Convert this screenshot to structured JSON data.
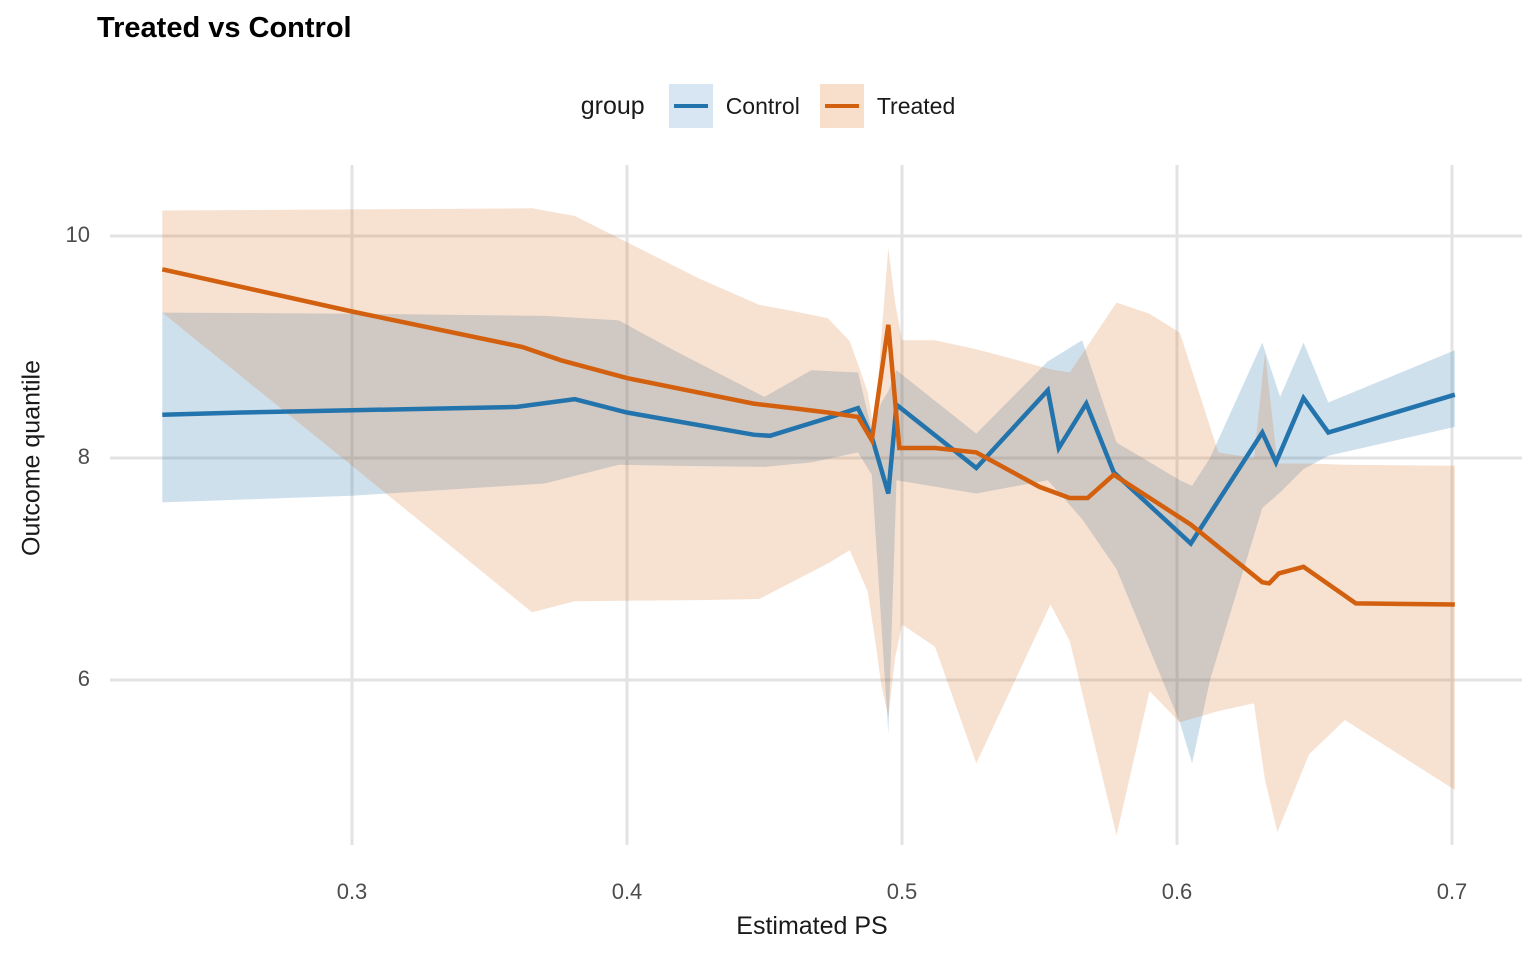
{
  "chart_data": {
    "type": "line",
    "title": "Treated vs Control",
    "xlabel": "Estimated PS",
    "ylabel": "Outcome quantile",
    "legend_title": "group",
    "x_ticks": [
      0.3,
      0.4,
      0.5,
      0.6,
      0.7
    ],
    "y_ticks": [
      10,
      8,
      6
    ],
    "xlim": [
      0.212,
      0.725
    ],
    "ylim": [
      4.5,
      10.6
    ],
    "grid": "major-only",
    "legend_position": "top-center",
    "gridline_color": "#e3e3e3",
    "series": [
      {
        "name": "Control",
        "line_color": "#2374ad",
        "band_fill": "rgba(35,116,173,0.22)",
        "legend_key_fill": "#d7e6f2",
        "x": [
          0.231,
          0.26,
          0.3,
          0.36,
          0.381,
          0.4,
          0.446,
          0.452,
          0.473,
          0.484,
          0.489,
          0.495,
          0.498,
          0.527,
          0.553,
          0.557,
          0.567,
          0.577,
          0.605,
          0.631,
          0.636,
          0.646,
          0.655,
          0.701
        ],
        "y": [
          8.39,
          8.41,
          8.43,
          8.46,
          8.53,
          8.41,
          8.21,
          8.2,
          8.36,
          8.45,
          8.19,
          7.68,
          8.48,
          7.91,
          8.61,
          8.09,
          8.49,
          7.87,
          7.23,
          8.23,
          7.96,
          8.54,
          8.23,
          8.57
        ],
        "band_x": [
          0.231,
          0.3,
          0.37,
          0.397,
          0.417,
          0.45,
          0.467,
          0.484,
          0.489,
          0.4925,
          0.495,
          0.498,
          0.527,
          0.553,
          0.5655,
          0.578,
          0.601,
          0.6055,
          0.612,
          0.631,
          0.6375,
          0.646,
          0.655,
          0.701
        ],
        "band_upper": [
          9.31,
          9.3,
          9.28,
          9.24,
          8.97,
          8.55,
          8.79,
          8.77,
          8.25,
          8.5,
          8.6,
          8.79,
          8.22,
          8.87,
          9.06,
          8.14,
          7.8,
          7.75,
          8.0,
          9.04,
          8.55,
          9.04,
          8.5,
          8.97
        ],
        "band_lower": [
          7.6,
          7.66,
          7.77,
          7.94,
          7.93,
          7.92,
          7.96,
          8.05,
          7.85,
          6.5,
          5.52,
          7.8,
          7.68,
          7.8,
          7.45,
          7.0,
          5.62,
          5.25,
          6.0,
          7.55,
          7.69,
          7.9,
          8.02,
          8.28
        ]
      },
      {
        "name": "Treated",
        "line_color": "#d2600f",
        "band_fill": "rgba(211,94,13,0.19)",
        "legend_key_fill": "#f8dfcc",
        "x": [
          0.231,
          0.3,
          0.362,
          0.376,
          0.4,
          0.446,
          0.46,
          0.473,
          0.484,
          0.489,
          0.495,
          0.499,
          0.512,
          0.527,
          0.55,
          0.561,
          0.5675,
          0.577,
          0.605,
          0.631,
          0.6335,
          0.637,
          0.646,
          0.665,
          0.701
        ],
        "y": [
          9.7,
          9.32,
          9.0,
          8.88,
          8.72,
          8.49,
          8.45,
          8.41,
          8.37,
          8.16,
          9.2,
          8.09,
          8.09,
          8.05,
          7.74,
          7.64,
          7.64,
          7.85,
          7.4,
          6.88,
          6.87,
          6.96,
          7.02,
          6.69,
          6.68
        ],
        "band_x": [
          0.231,
          0.3,
          0.3655,
          0.381,
          0.426,
          0.448,
          0.459,
          0.473,
          0.481,
          0.4875,
          0.49,
          0.4925,
          0.495,
          0.4975,
          0.5,
          0.512,
          0.527,
          0.554,
          0.561,
          0.578,
          0.59,
          0.601,
          0.615,
          0.628,
          0.632,
          0.6365,
          0.648,
          0.661,
          0.701
        ],
        "band_upper": [
          10.23,
          10.24,
          10.25,
          10.18,
          9.62,
          9.38,
          9.33,
          9.26,
          9.05,
          8.6,
          8.22,
          9.1,
          9.89,
          9.4,
          9.06,
          9.06,
          8.98,
          8.8,
          8.77,
          9.4,
          9.3,
          9.13,
          8.05,
          8.0,
          8.95,
          7.95,
          7.95,
          7.94,
          7.93
        ],
        "band_lower": [
          9.31,
          7.93,
          6.61,
          6.71,
          6.72,
          6.73,
          6.87,
          7.05,
          7.17,
          6.8,
          6.4,
          5.95,
          5.67,
          6.2,
          6.5,
          6.3,
          5.25,
          6.68,
          6.35,
          4.6,
          5.9,
          5.62,
          5.72,
          5.79,
          5.1,
          4.63,
          5.33,
          5.64,
          5.01
        ]
      }
    ]
  }
}
